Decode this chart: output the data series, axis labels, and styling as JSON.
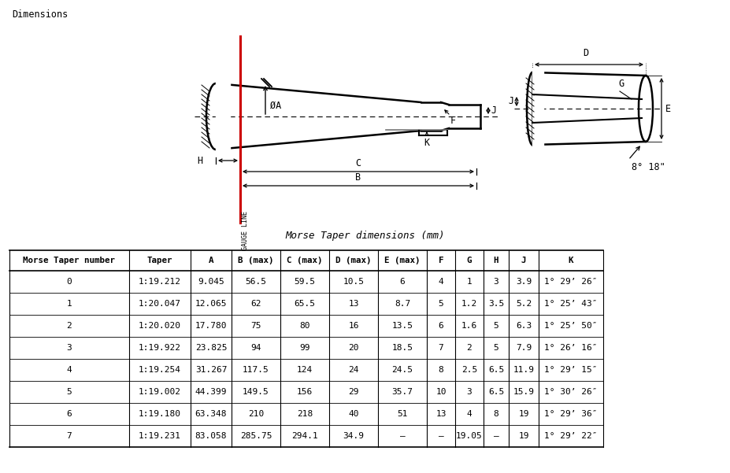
{
  "title": "Dimensions",
  "table_title": "Morse Taper dimensions (mm)",
  "headers": [
    "Morse Taper number",
    "Taper",
    "A",
    "B (max)",
    "C (max)",
    "D (max)",
    "E (max)",
    "F",
    "G",
    "H",
    "J",
    "K"
  ],
  "rows": [
    [
      "0",
      "1:19.212",
      "9.045",
      "56.5",
      "59.5",
      "10.5",
      "6",
      "4",
      "1",
      "3",
      "3.9",
      "1° 29’ 26″"
    ],
    [
      "1",
      "1:20.047",
      "12.065",
      "62",
      "65.5",
      "13",
      "8.7",
      "5",
      "1.2",
      "3.5",
      "5.2",
      "1° 25’ 43″"
    ],
    [
      "2",
      "1:20.020",
      "17.780",
      "75",
      "80",
      "16",
      "13.5",
      "6",
      "1.6",
      "5",
      "6.3",
      "1° 25’ 50″"
    ],
    [
      "3",
      "1:19.922",
      "23.825",
      "94",
      "99",
      "20",
      "18.5",
      "7",
      "2",
      "5",
      "7.9",
      "1° 26’ 16″"
    ],
    [
      "4",
      "1:19.254",
      "31.267",
      "117.5",
      "124",
      "24",
      "24.5",
      "8",
      "2.5",
      "6.5",
      "11.9",
      "1° 29’ 15″"
    ],
    [
      "5",
      "1:19.002",
      "44.399",
      "149.5",
      "156",
      "29",
      "35.7",
      "10",
      "3",
      "6.5",
      "15.9",
      "1° 30’ 26″"
    ],
    [
      "6",
      "1:19.180",
      "63.348",
      "210",
      "218",
      "40",
      "51",
      "13",
      "4",
      "8",
      "19",
      "1° 29’ 36″"
    ],
    [
      "7",
      "1:19.231",
      "83.058",
      "285.75",
      "294.1",
      "34.9",
      "–",
      "–",
      "19.05",
      "–",
      "19",
      "1° 29’ 22″"
    ]
  ],
  "bg_color": "#ffffff",
  "line_color": "#000000",
  "red_color": "#cc0000",
  "diagram_font": "monospace",
  "label_fontsize": 8.5,
  "table_fontsize": 8.5
}
